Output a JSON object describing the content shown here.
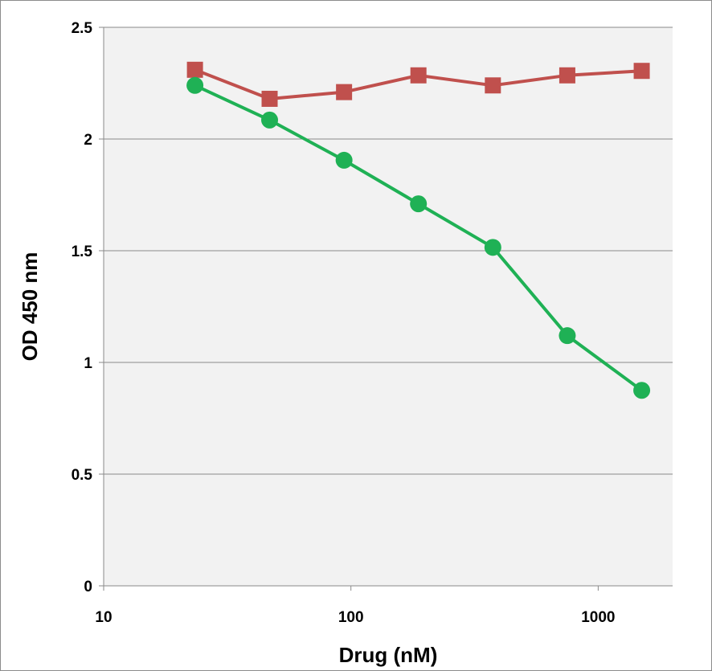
{
  "chart_data": {
    "type": "line",
    "title": "",
    "xlabel": "Drug (nM)",
    "ylabel": "OD 450 nm",
    "xscale": "log",
    "xlim": [
      10,
      2000
    ],
    "ylim": [
      0,
      2.5
    ],
    "xticks": [
      10,
      100,
      1000
    ],
    "xtick_labels": [
      "10",
      "100",
      "1000"
    ],
    "yticks": [
      0,
      0.5,
      1,
      1.5,
      2,
      2.5
    ],
    "ytick_labels": [
      "0",
      "0.5",
      "1",
      "1.5",
      "2",
      "2.5"
    ],
    "grid": "horizontal",
    "plot_background": "#f2f2f2",
    "x": [
      23.4,
      46.9,
      93.8,
      187.5,
      375,
      750,
      1500
    ],
    "series": [
      {
        "marker": "square",
        "color": "#c0504d",
        "values": [
          2.31,
          2.18,
          2.21,
          2.285,
          2.24,
          2.285,
          2.305
        ]
      },
      {
        "marker": "circle",
        "color": "#1fb155",
        "values": [
          2.24,
          2.085,
          1.905,
          1.71,
          1.515,
          1.12,
          0.875
        ]
      }
    ]
  }
}
